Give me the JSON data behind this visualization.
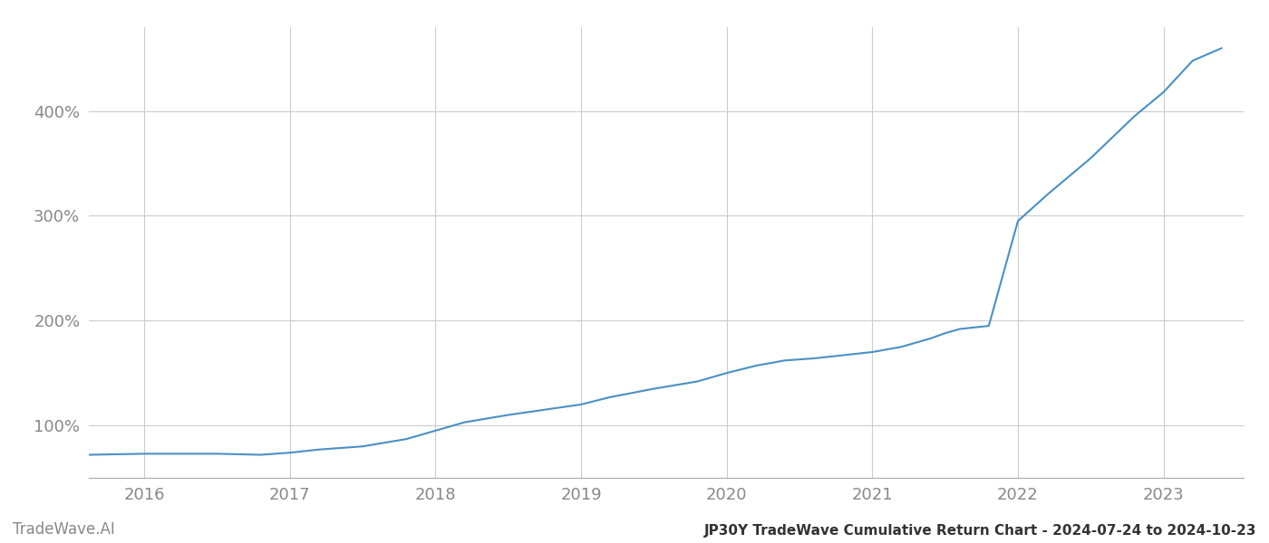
{
  "title": "JP30Y TradeWave Cumulative Return Chart - 2024-07-24 to 2024-10-23",
  "watermark": "TradeWave.AI",
  "line_color": "#4a90c4",
  "background_color": "#ffffff",
  "grid_color": "#cccccc",
  "x_years": [
    2016,
    2017,
    2018,
    2019,
    2020,
    2021,
    2022,
    2023
  ],
  "x_min": 2015.62,
  "x_max": 2023.55,
  "y_min": 50,
  "y_max": 480,
  "y_ticks": [
    100,
    200,
    300,
    400
  ],
  "curve_x": [
    2015.62,
    2016.0,
    2016.2,
    2016.5,
    2016.8,
    2017.0,
    2017.2,
    2017.5,
    2017.8,
    2018.0,
    2018.2,
    2018.5,
    2018.8,
    2019.0,
    2019.2,
    2019.5,
    2019.8,
    2020.0,
    2020.2,
    2020.4,
    2020.6,
    2020.8,
    2021.0,
    2021.2,
    2021.4,
    2021.5,
    2021.6,
    2021.8,
    2022.0,
    2022.2,
    2022.5,
    2022.8,
    2023.0,
    2023.2,
    2023.4
  ],
  "curve_y": [
    72,
    73,
    73,
    73,
    72,
    74,
    77,
    80,
    87,
    95,
    103,
    110,
    116,
    120,
    127,
    135,
    142,
    150,
    157,
    162,
    164,
    167,
    170,
    175,
    183,
    188,
    192,
    195,
    295,
    320,
    355,
    395,
    418,
    448,
    460
  ]
}
